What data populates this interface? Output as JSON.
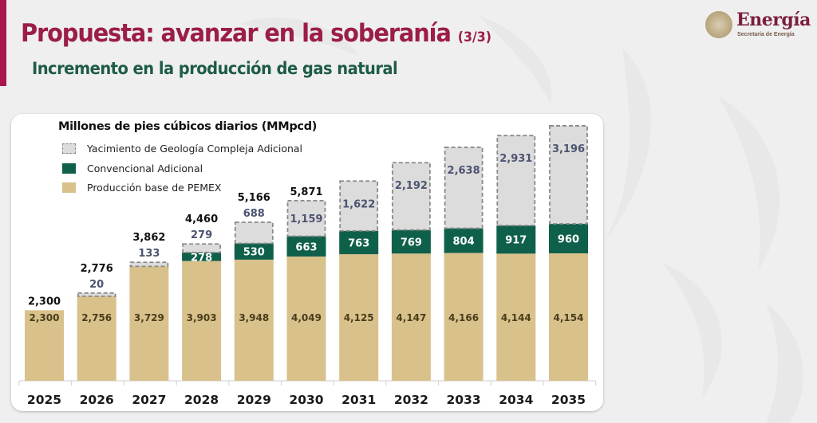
{
  "header": {
    "title": "Propuesta: avanzar en la soberanía",
    "title_suffix": "(3/3)",
    "subtitle": "Incremento en la producción de gas natural"
  },
  "logo": {
    "name": "Energía",
    "tagline": "Secretaría de Energía",
    "icon": "national-seal-icon"
  },
  "colors": {
    "title": "#9b1d48",
    "subtitle": "#1e5b48",
    "accent": "#a8174e",
    "base": "#d8c18b",
    "conventional": "#0f604a",
    "complex": "#dcdcdc",
    "complex_border": "#8a8a8a",
    "complex_label": "#4d5470"
  },
  "chart_data": {
    "type": "bar",
    "stacked": true,
    "title": "Millones de pies cúbicos diarios (MMpcd)",
    "xlabel": "",
    "ylabel": "",
    "ylim": [
      0,
      8400
    ],
    "grid": false,
    "legend_position": "top-left",
    "categories": [
      "2025",
      "2026",
      "2027",
      "2028",
      "2029",
      "2030",
      "2031",
      "2032",
      "2033",
      "2034",
      "2035"
    ],
    "series": [
      {
        "name": "Producción base de PEMEX",
        "key": "base",
        "values": [
          2300,
          2756,
          3729,
          3903,
          3948,
          4049,
          4125,
          4147,
          4166,
          4144,
          4154
        ]
      },
      {
        "name": "Convencional Adicional",
        "key": "conventional",
        "values": [
          0,
          0,
          0,
          278,
          530,
          663,
          763,
          769,
          804,
          917,
          960
        ]
      },
      {
        "name": "Yacimiento de Geología Compleja Adicional",
        "key": "complex",
        "values": [
          0,
          20,
          133,
          279,
          688,
          1159,
          1622,
          2192,
          2638,
          2931,
          3196
        ]
      }
    ],
    "totals": [
      "2,300",
      "2,776",
      "3,862",
      "4,460",
      "5,166",
      "5,871",
      null,
      null,
      null,
      null,
      null
    ],
    "legend_order": [
      "complex",
      "conventional",
      "base"
    ]
  }
}
